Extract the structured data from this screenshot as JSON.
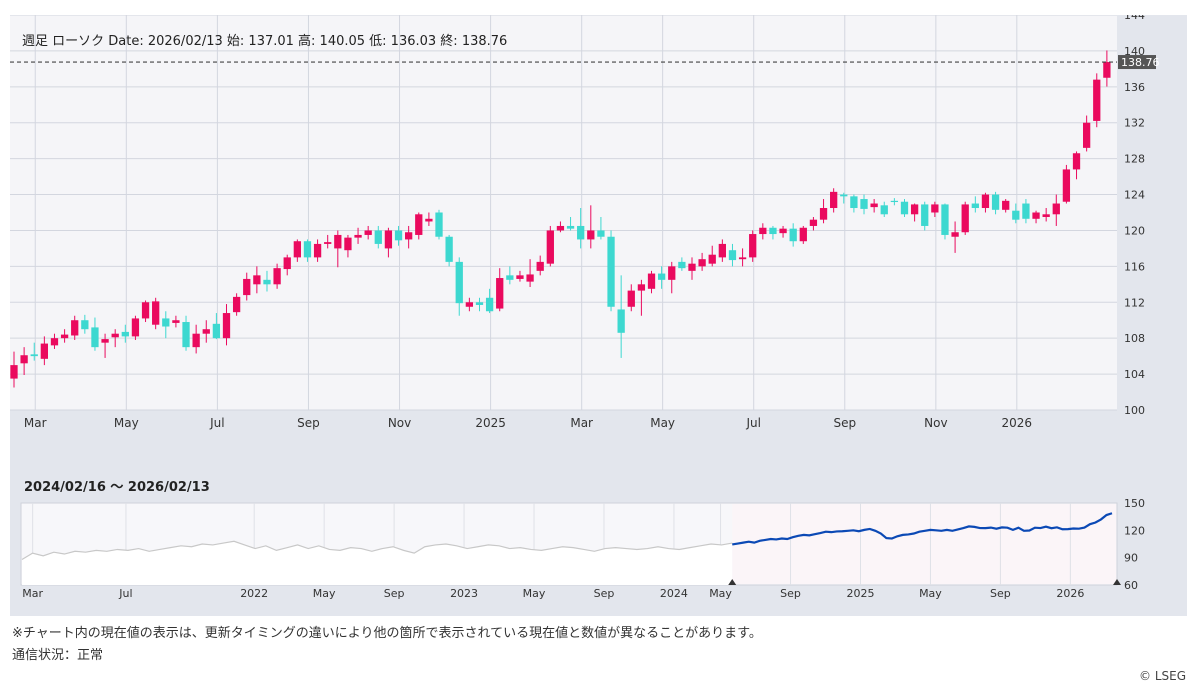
{
  "main_chart": {
    "header_title": "週足 ローソク",
    "header_date_label": "Date:",
    "header_date": "2026/02/13",
    "open_label": "始:",
    "open": "137.01",
    "high_label": "高:",
    "high": "140.05",
    "low_label": "低:",
    "low": "136.03",
    "close_label": "終:",
    "close": "138.76",
    "last_price_tag": "138.76"
  },
  "navigator": {
    "range_label": "2024/02/16 〜 2026/02/13"
  },
  "colors": {
    "up_candle": "#ea0a5e",
    "down_candle": "#3dd8d0",
    "navigator_selected_line": "#0b49b5",
    "navigator_history_line": "#c8c8c8",
    "plot_background": "#f5f5f8",
    "panel_background": "#e3e6ed"
  },
  "footer": {
    "disclaimer": "※チャート内の現在値の表示は、更新タイミングの違いにより他の箇所で表示されている現在値と数値が異なることがあります。",
    "status": "通信状況：正常",
    "copyright": "© LSEG"
  },
  "chart_data": [
    {
      "type": "candlestick",
      "interval": "weekly",
      "y_ticks": [
        100,
        104,
        108,
        112,
        116,
        120,
        124,
        128,
        132,
        136,
        140,
        144
      ],
      "ylim": [
        100,
        144
      ],
      "x_tick_labels": [
        {
          "label": "Mar",
          "index": 2
        },
        {
          "label": "May",
          "index": 11
        },
        {
          "label": "Jul",
          "index": 20
        },
        {
          "label": "Sep",
          "index": 29
        },
        {
          "label": "Nov",
          "index": 38
        },
        {
          "label": "2025",
          "index": 47
        },
        {
          "label": "Mar",
          "index": 56
        },
        {
          "label": "May",
          "index": 64
        },
        {
          "label": "Jul",
          "index": 73
        },
        {
          "label": "Sep",
          "index": 82
        },
        {
          "label": "Nov",
          "index": 91
        },
        {
          "label": "2026",
          "index": 99
        }
      ],
      "last_price": 138.76,
      "grid": true,
      "candles": [
        {
          "o": 103.5,
          "h": 106.5,
          "l": 102.5,
          "c": 105.0
        },
        {
          "o": 105.2,
          "h": 107.0,
          "l": 103.9,
          "c": 106.1
        },
        {
          "o": 106.2,
          "h": 107.5,
          "l": 105.5,
          "c": 106.0
        },
        {
          "o": 105.7,
          "h": 108.2,
          "l": 105.0,
          "c": 107.4
        },
        {
          "o": 107.2,
          "h": 108.5,
          "l": 106.8,
          "c": 108.0
        },
        {
          "o": 108.0,
          "h": 109.0,
          "l": 107.5,
          "c": 108.4
        },
        {
          "o": 108.3,
          "h": 110.5,
          "l": 107.8,
          "c": 110.0
        },
        {
          "o": 110.0,
          "h": 110.6,
          "l": 108.5,
          "c": 109.0
        },
        {
          "o": 109.2,
          "h": 110.3,
          "l": 106.6,
          "c": 107.0
        },
        {
          "o": 107.5,
          "h": 108.5,
          "l": 105.8,
          "c": 107.9
        },
        {
          "o": 108.1,
          "h": 109.0,
          "l": 107.0,
          "c": 108.5
        },
        {
          "o": 108.7,
          "h": 109.5,
          "l": 107.5,
          "c": 108.2
        },
        {
          "o": 108.2,
          "h": 110.5,
          "l": 107.8,
          "c": 110.2
        },
        {
          "o": 110.2,
          "h": 112.2,
          "l": 109.8,
          "c": 112.0
        },
        {
          "o": 109.5,
          "h": 112.5,
          "l": 109.0,
          "c": 112.1
        },
        {
          "o": 110.2,
          "h": 111.0,
          "l": 108.0,
          "c": 109.3
        },
        {
          "o": 109.7,
          "h": 110.5,
          "l": 109.2,
          "c": 110.0
        },
        {
          "o": 109.8,
          "h": 110.5,
          "l": 106.6,
          "c": 107.0
        },
        {
          "o": 107.0,
          "h": 109.5,
          "l": 106.3,
          "c": 108.5
        },
        {
          "o": 108.5,
          "h": 110.0,
          "l": 107.5,
          "c": 109.0
        },
        {
          "o": 109.6,
          "h": 110.8,
          "l": 107.9,
          "c": 108.0
        },
        {
          "o": 108.0,
          "h": 111.8,
          "l": 107.2,
          "c": 110.8
        },
        {
          "o": 110.9,
          "h": 113.0,
          "l": 110.5,
          "c": 112.6
        },
        {
          "o": 112.8,
          "h": 115.3,
          "l": 112.2,
          "c": 114.6
        },
        {
          "o": 114.0,
          "h": 116.0,
          "l": 113.0,
          "c": 115.0
        },
        {
          "o": 114.5,
          "h": 115.5,
          "l": 113.2,
          "c": 114.0
        },
        {
          "o": 114.0,
          "h": 116.3,
          "l": 113.5,
          "c": 115.8
        },
        {
          "o": 115.7,
          "h": 117.3,
          "l": 115.0,
          "c": 117.0
        },
        {
          "o": 117.0,
          "h": 119.0,
          "l": 116.5,
          "c": 118.8
        },
        {
          "o": 118.8,
          "h": 119.0,
          "l": 116.5,
          "c": 117.0
        },
        {
          "o": 117.0,
          "h": 119.0,
          "l": 116.5,
          "c": 118.5
        },
        {
          "o": 118.5,
          "h": 119.5,
          "l": 118.0,
          "c": 118.7
        },
        {
          "o": 118.0,
          "h": 120.0,
          "l": 115.9,
          "c": 119.5
        },
        {
          "o": 117.8,
          "h": 119.5,
          "l": 117.0,
          "c": 119.2
        },
        {
          "o": 119.2,
          "h": 120.3,
          "l": 118.5,
          "c": 119.5
        },
        {
          "o": 119.5,
          "h": 120.5,
          "l": 119.0,
          "c": 120.0
        },
        {
          "o": 120.0,
          "h": 120.5,
          "l": 118.0,
          "c": 118.5
        },
        {
          "o": 118.0,
          "h": 120.3,
          "l": 117.0,
          "c": 120.0
        },
        {
          "o": 120.0,
          "h": 120.5,
          "l": 118.3,
          "c": 118.9
        },
        {
          "o": 119.0,
          "h": 120.5,
          "l": 118.0,
          "c": 119.8
        },
        {
          "o": 119.5,
          "h": 122.0,
          "l": 119.0,
          "c": 121.8
        },
        {
          "o": 121.0,
          "h": 122.0,
          "l": 120.5,
          "c": 121.3
        },
        {
          "o": 122.0,
          "h": 122.3,
          "l": 119.0,
          "c": 119.3
        },
        {
          "o": 119.3,
          "h": 119.5,
          "l": 116.0,
          "c": 116.5
        },
        {
          "o": 116.5,
          "h": 117.0,
          "l": 110.5,
          "c": 111.9
        },
        {
          "o": 111.5,
          "h": 112.5,
          "l": 111.0,
          "c": 112.0
        },
        {
          "o": 112.0,
          "h": 112.5,
          "l": 111.0,
          "c": 111.7
        },
        {
          "o": 112.5,
          "h": 113.5,
          "l": 110.8,
          "c": 111.0
        },
        {
          "o": 111.3,
          "h": 115.8,
          "l": 111.0,
          "c": 114.7
        },
        {
          "o": 115.0,
          "h": 116.0,
          "l": 114.0,
          "c": 114.5
        },
        {
          "o": 114.6,
          "h": 115.5,
          "l": 114.3,
          "c": 115.0
        },
        {
          "o": 114.3,
          "h": 116.8,
          "l": 113.7,
          "c": 115.1
        },
        {
          "o": 115.5,
          "h": 117.2,
          "l": 115.0,
          "c": 116.5
        },
        {
          "o": 116.3,
          "h": 120.5,
          "l": 116.0,
          "c": 120.0
        },
        {
          "o": 120.0,
          "h": 121.0,
          "l": 119.8,
          "c": 120.5
        },
        {
          "o": 120.5,
          "h": 121.5,
          "l": 120.0,
          "c": 120.2
        },
        {
          "o": 120.5,
          "h": 122.5,
          "l": 118.0,
          "c": 119.0
        },
        {
          "o": 119.0,
          "h": 122.8,
          "l": 118.0,
          "c": 120.0
        },
        {
          "o": 120.0,
          "h": 121.5,
          "l": 119.0,
          "c": 119.3
        },
        {
          "o": 119.3,
          "h": 120.0,
          "l": 111.0,
          "c": 111.5
        },
        {
          "o": 111.2,
          "h": 115.0,
          "l": 105.8,
          "c": 108.6
        },
        {
          "o": 111.5,
          "h": 114.0,
          "l": 111.0,
          "c": 113.3
        },
        {
          "o": 113.3,
          "h": 114.5,
          "l": 110.5,
          "c": 114.0
        },
        {
          "o": 113.5,
          "h": 115.5,
          "l": 113.0,
          "c": 115.2
        },
        {
          "o": 115.2,
          "h": 116.0,
          "l": 113.5,
          "c": 114.5
        },
        {
          "o": 114.5,
          "h": 116.5,
          "l": 113.0,
          "c": 116.0
        },
        {
          "o": 116.5,
          "h": 117.0,
          "l": 115.5,
          "c": 115.8
        },
        {
          "o": 115.5,
          "h": 117.0,
          "l": 114.5,
          "c": 116.3
        },
        {
          "o": 116.0,
          "h": 117.5,
          "l": 115.5,
          "c": 116.8
        },
        {
          "o": 116.3,
          "h": 118.3,
          "l": 116.0,
          "c": 117.3
        },
        {
          "o": 117.0,
          "h": 119.0,
          "l": 116.5,
          "c": 118.5
        },
        {
          "o": 117.8,
          "h": 118.5,
          "l": 116.0,
          "c": 116.7
        },
        {
          "o": 116.8,
          "h": 118.0,
          "l": 116.0,
          "c": 117.0
        },
        {
          "o": 117.0,
          "h": 120.0,
          "l": 116.5,
          "c": 119.6
        },
        {
          "o": 119.6,
          "h": 120.8,
          "l": 119.0,
          "c": 120.3
        },
        {
          "o": 120.3,
          "h": 120.5,
          "l": 119.0,
          "c": 119.6
        },
        {
          "o": 119.7,
          "h": 120.5,
          "l": 119.2,
          "c": 120.2
        },
        {
          "o": 120.2,
          "h": 120.8,
          "l": 118.2,
          "c": 118.8
        },
        {
          "o": 118.8,
          "h": 120.5,
          "l": 118.5,
          "c": 120.3
        },
        {
          "o": 120.5,
          "h": 121.5,
          "l": 120.0,
          "c": 121.2
        },
        {
          "o": 121.2,
          "h": 123.5,
          "l": 120.8,
          "c": 122.5
        },
        {
          "o": 122.5,
          "h": 124.7,
          "l": 122.0,
          "c": 124.3
        },
        {
          "o": 124.0,
          "h": 124.2,
          "l": 123.0,
          "c": 123.8
        },
        {
          "o": 123.8,
          "h": 124.0,
          "l": 122.0,
          "c": 122.5
        },
        {
          "o": 123.5,
          "h": 124.0,
          "l": 121.8,
          "c": 122.4
        },
        {
          "o": 122.6,
          "h": 123.5,
          "l": 122.0,
          "c": 123.0
        },
        {
          "o": 122.8,
          "h": 123.2,
          "l": 121.5,
          "c": 121.8
        },
        {
          "o": 123.3,
          "h": 123.6,
          "l": 122.8,
          "c": 123.2
        },
        {
          "o": 123.2,
          "h": 123.5,
          "l": 121.5,
          "c": 121.8
        },
        {
          "o": 121.8,
          "h": 123.0,
          "l": 121.0,
          "c": 122.9
        },
        {
          "o": 122.9,
          "h": 123.2,
          "l": 120.0,
          "c": 120.5
        },
        {
          "o": 122.0,
          "h": 123.2,
          "l": 121.5,
          "c": 122.9
        },
        {
          "o": 122.9,
          "h": 123.0,
          "l": 119.0,
          "c": 119.5
        },
        {
          "o": 119.3,
          "h": 121.0,
          "l": 117.5,
          "c": 119.8
        },
        {
          "o": 119.8,
          "h": 123.2,
          "l": 119.5,
          "c": 122.9
        },
        {
          "o": 123.0,
          "h": 123.8,
          "l": 122.0,
          "c": 122.5
        },
        {
          "o": 122.5,
          "h": 124.2,
          "l": 122.0,
          "c": 124.0
        },
        {
          "o": 124.0,
          "h": 124.3,
          "l": 121.8,
          "c": 122.3
        },
        {
          "o": 122.3,
          "h": 123.5,
          "l": 122.0,
          "c": 123.3
        },
        {
          "o": 122.2,
          "h": 123.0,
          "l": 120.8,
          "c": 121.2
        },
        {
          "o": 123.0,
          "h": 123.5,
          "l": 120.8,
          "c": 121.3
        },
        {
          "o": 121.3,
          "h": 122.2,
          "l": 120.8,
          "c": 122.0
        },
        {
          "o": 121.5,
          "h": 122.5,
          "l": 121.0,
          "c": 121.8
        },
        {
          "o": 121.8,
          "h": 124.0,
          "l": 120.5,
          "c": 123.0
        },
        {
          "o": 123.2,
          "h": 127.3,
          "l": 123.0,
          "c": 126.8
        },
        {
          "o": 126.8,
          "h": 128.8,
          "l": 125.7,
          "c": 128.6
        },
        {
          "o": 129.2,
          "h": 132.8,
          "l": 128.8,
          "c": 132.0
        },
        {
          "o": 132.2,
          "h": 137.5,
          "l": 131.5,
          "c": 136.8
        },
        {
          "o": 137.01,
          "h": 140.05,
          "l": 136.03,
          "c": 138.76
        }
      ]
    },
    {
      "type": "area",
      "role": "navigator",
      "y_ticks": [
        60,
        90,
        120,
        150
      ],
      "ylim": [
        60,
        150
      ],
      "x_tick_labels": [
        "Mar",
        "Jul",
        "2022",
        "May",
        "Sep",
        "2023",
        "May",
        "Sep",
        "2024",
        "May",
        "Sep",
        "2025",
        "May",
        "Sep",
        "2026"
      ],
      "x_tick_positions": [
        0.5,
        4.5,
        10,
        13,
        16,
        19,
        22,
        25,
        28,
        30,
        33,
        36,
        39,
        42,
        45
      ],
      "history_values": [
        88,
        95,
        92,
        96,
        94,
        97,
        96,
        98,
        97,
        99,
        98,
        100,
        97,
        99,
        101,
        103,
        102,
        105,
        104,
        106,
        108,
        104,
        100,
        103,
        98,
        101,
        104,
        100,
        103,
        99,
        98,
        101,
        100,
        97,
        100,
        102,
        98,
        95,
        102,
        104,
        105,
        103,
        100,
        102,
        104,
        103,
        100,
        101,
        99,
        98,
        100,
        102,
        101,
        99,
        97,
        100,
        101,
        100,
        99,
        100,
        102,
        100,
        99,
        101,
        103,
        105,
        104,
        106
      ],
      "selected_values": [
        104.5,
        105.5,
        106.5,
        107.5,
        106.5,
        108.5,
        109.5,
        110.5,
        110.0,
        111.0,
        110.5,
        112.5,
        114.0,
        115.0,
        114.5,
        115.8,
        117.0,
        118.5,
        118.0,
        118.8,
        119.0,
        119.5,
        120.0,
        119.0,
        120.5,
        121.5,
        119.5,
        116.5,
        111.5,
        111.0,
        113.5,
        115.0,
        115.5,
        116.5,
        118.5,
        119.5,
        120.5,
        120.0,
        119.5,
        120.5,
        119.5,
        121.0,
        122.5,
        124.3,
        123.8,
        122.5,
        122.4,
        123.0,
        121.8,
        123.2,
        122.9,
        120.5,
        122.9,
        119.5,
        119.8,
        122.9,
        122.5,
        124.0,
        122.3,
        123.3,
        121.2,
        121.3,
        122.0,
        121.8,
        123.0,
        126.8,
        128.6,
        132.0,
        136.8,
        138.76
      ]
    }
  ]
}
